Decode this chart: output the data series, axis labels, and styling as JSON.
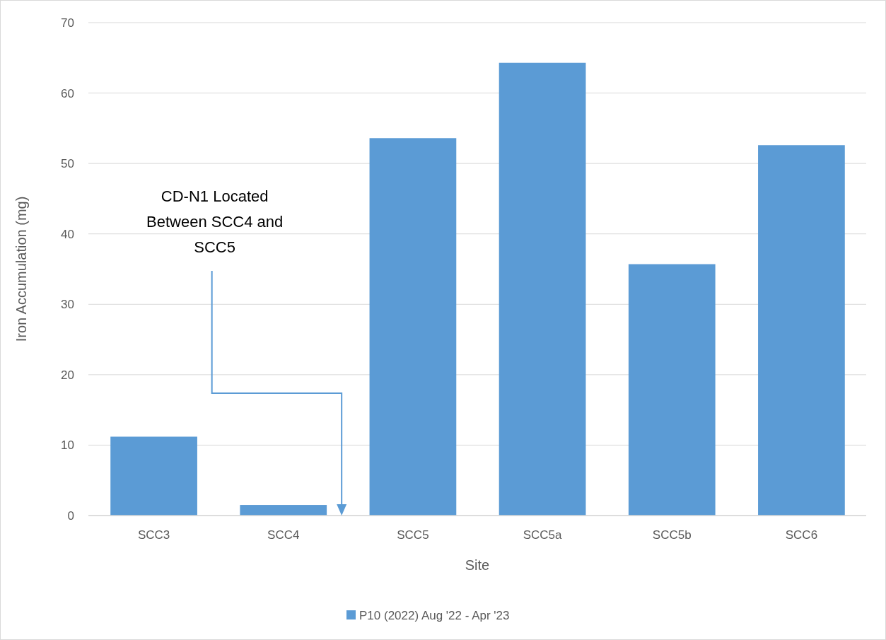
{
  "chart_data": {
    "type": "bar",
    "categories": [
      "SCC3",
      "SCC4",
      "SCC5",
      "SCC5a",
      "SCC5b",
      "SCC6"
    ],
    "series": [
      {
        "name": "P10 (2022) Aug '22 - Apr '23",
        "color": "#5b9bd5",
        "values": [
          11.2,
          1.5,
          53.6,
          64.3,
          35.7,
          52.6
        ]
      }
    ],
    "xlabel": "Site",
    "ylabel": "Iron Accumulation (mg)",
    "ylim": [
      0,
      70
    ],
    "yticks": [
      0,
      10,
      20,
      30,
      40,
      50,
      60,
      70
    ],
    "grid": "y",
    "legend": "bottom",
    "annotations": [
      "CD-N1 Located Between SCC4 and SCC5"
    ]
  }
}
